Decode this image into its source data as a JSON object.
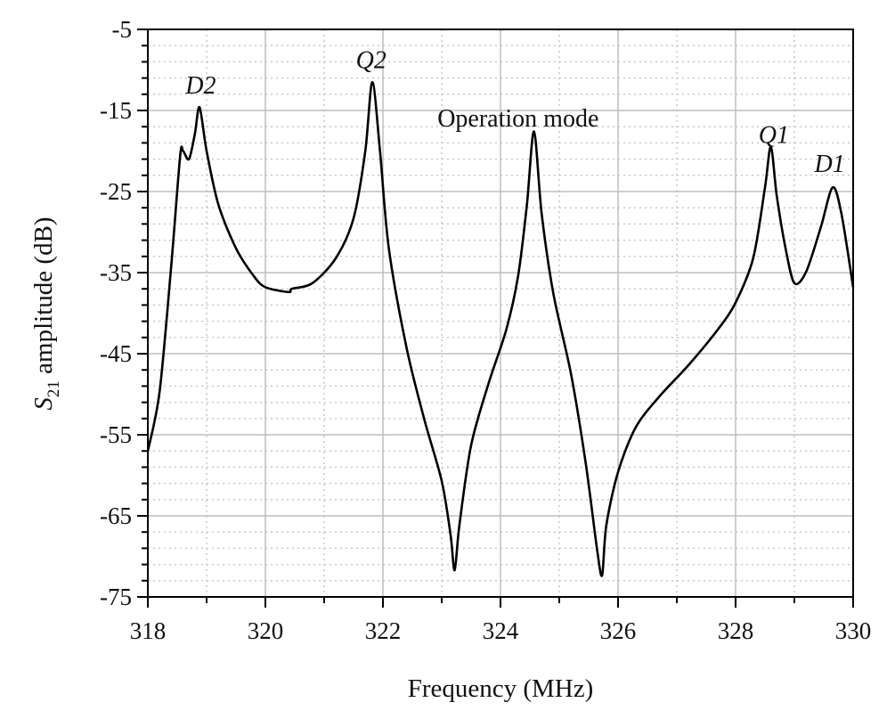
{
  "chart_data": {
    "type": "line",
    "title": "",
    "xlabel": "Frequency (MHz)",
    "ylabel": {
      "symbol": "S",
      "subscript": "21",
      "rest": " amplitude (dB)"
    },
    "xlim": [
      318,
      330
    ],
    "ylim": [
      -75,
      -5
    ],
    "xticks": [
      318,
      320,
      322,
      324,
      326,
      328,
      330
    ],
    "yticks": [
      -5,
      -15,
      -25,
      -35,
      -45,
      -55,
      -65,
      -75
    ],
    "grid": {
      "major": true,
      "minor": true
    },
    "series": [
      {
        "name": "S21",
        "color": "#000000",
        "x": [
          318.0,
          318.2,
          318.4,
          318.55,
          318.6,
          318.7,
          318.8,
          318.88,
          319.0,
          319.2,
          319.5,
          319.8,
          320.0,
          320.4,
          320.45,
          320.8,
          321.2,
          321.5,
          321.7,
          321.82,
          321.95,
          322.1,
          322.4,
          322.7,
          323.0,
          323.15,
          323.22,
          323.3,
          323.5,
          323.8,
          324.1,
          324.3,
          324.45,
          324.57,
          324.7,
          324.9,
          325.2,
          325.45,
          325.65,
          325.73,
          325.8,
          326.0,
          326.3,
          326.7,
          327.2,
          327.7,
          328.0,
          328.3,
          328.5,
          328.6,
          328.7,
          328.85,
          329.0,
          329.2,
          329.45,
          329.65,
          329.8,
          330.0
        ],
        "y": [
          -57,
          -49.7,
          -34,
          -20.6,
          -20,
          -21,
          -17.9,
          -14.6,
          -20,
          -26.6,
          -32,
          -35.4,
          -36.8,
          -37.4,
          -37.0,
          -36.3,
          -33.2,
          -28.3,
          -20,
          -11.5,
          -20,
          -32,
          -44.2,
          -53,
          -60.7,
          -67.3,
          -71.7,
          -66.2,
          -56.3,
          -48.6,
          -42,
          -35.4,
          -26.6,
          -17.6,
          -27.7,
          -37.6,
          -47.5,
          -58.5,
          -69.5,
          -72.3,
          -66.2,
          -59.6,
          -54.1,
          -50.3,
          -46.4,
          -42,
          -38.7,
          -33.2,
          -24.5,
          -19.5,
          -25.5,
          -32,
          -36.3,
          -34.9,
          -29.4,
          -24.5,
          -27.7,
          -36.8
        ]
      }
    ],
    "annotations": [
      {
        "text": "D2",
        "italic": true,
        "x": 318.9,
        "y": -11.8
      },
      {
        "text": "Q2",
        "italic": true,
        "x": 321.8,
        "y": -8.7
      },
      {
        "text": "Operation mode",
        "italic": false,
        "x": 324.3,
        "y": -15.9
      },
      {
        "text": "Q1",
        "italic": true,
        "x": 328.65,
        "y": -17.9
      },
      {
        "text": "D1",
        "italic": true,
        "x": 329.6,
        "y": -21.5
      }
    ]
  }
}
